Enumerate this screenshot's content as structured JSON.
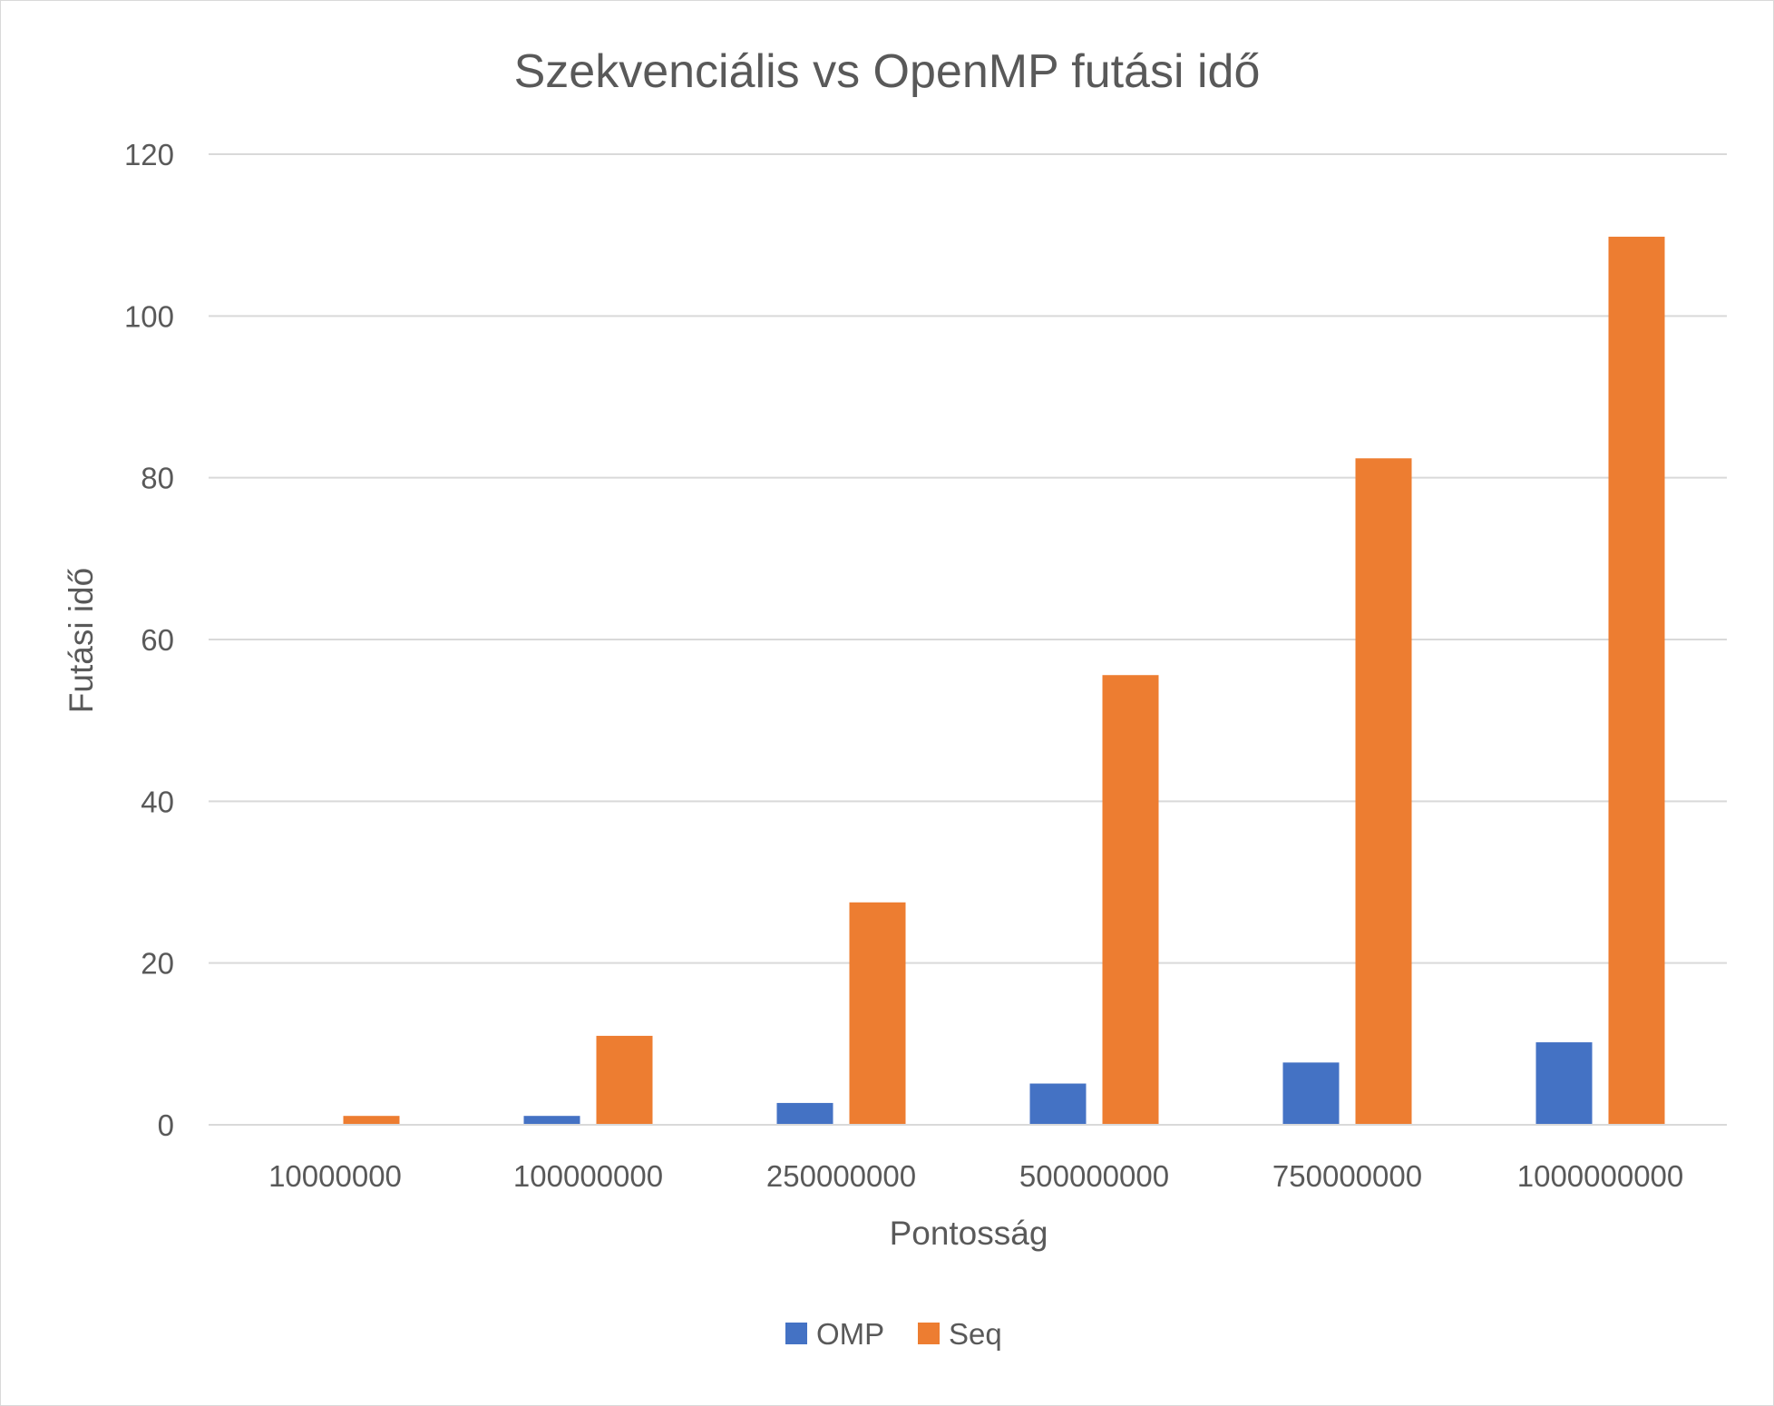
{
  "chart_data": {
    "type": "bar",
    "title": "Szekvenciális vs OpenMP futási idő",
    "xlabel": "Pontosság",
    "ylabel": "Futási idő",
    "categories": [
      "10000000",
      "100000000",
      "250000000",
      "500000000",
      "750000000",
      "1000000000"
    ],
    "series": [
      {
        "name": "OMP",
        "color": "#4472c4",
        "values": [
          0.1,
          1.1,
          2.7,
          5.1,
          7.7,
          10.2
        ]
      },
      {
        "name": "Seq",
        "color": "#ed7d31",
        "values": [
          1.1,
          11.0,
          27.5,
          55.6,
          82.4,
          109.8
        ]
      }
    ],
    "ylim": [
      0,
      120
    ],
    "yticks": [
      0,
      20,
      40,
      60,
      80,
      100,
      120
    ],
    "grid": true,
    "legend": "bottom"
  }
}
